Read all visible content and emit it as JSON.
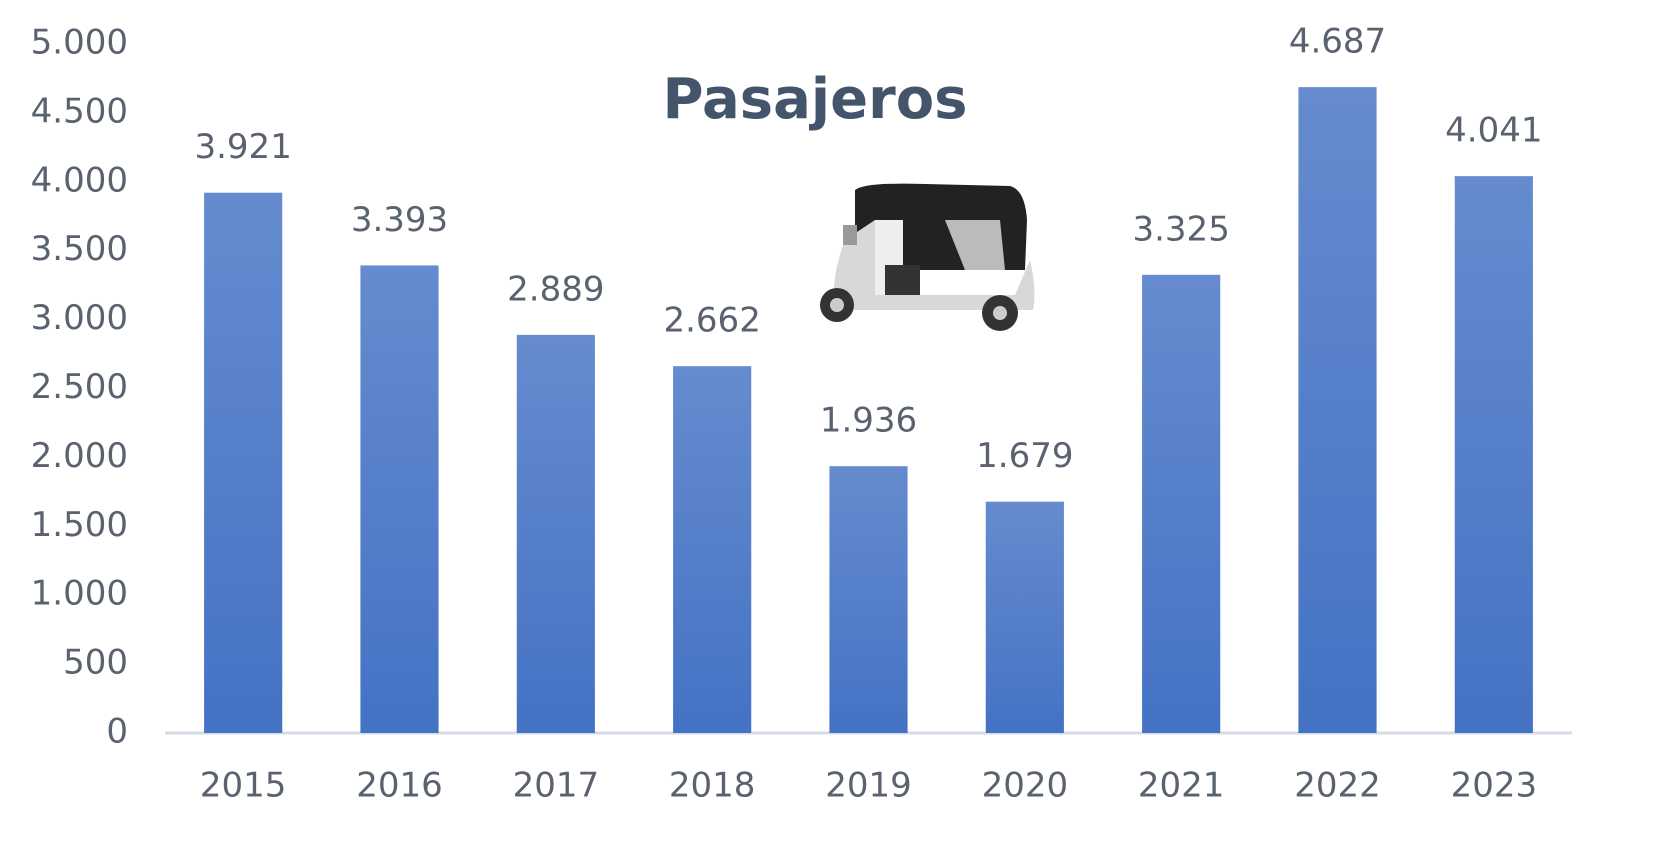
{
  "chart_data": {
    "type": "bar",
    "title": "Pasajeros",
    "categories": [
      "2015",
      "2016",
      "2017",
      "2018",
      "2019",
      "2020",
      "2021",
      "2022",
      "2023"
    ],
    "values": [
      3921,
      3393,
      2889,
      2662,
      1936,
      1679,
      3325,
      4687,
      4041
    ],
    "value_labels": [
      "3.921",
      "3.393",
      "2.889",
      "2.662",
      "1.936",
      "1.679",
      "3.325",
      "4.687",
      "4.041"
    ],
    "color": "#4472c4",
    "ylim": [
      0,
      5000
    ],
    "yticks": [
      0,
      500,
      {
        "value": 1000,
        "label": "1.000"
      },
      {
        "value": 1500,
        "label": "1.500"
      },
      {
        "value": 2000,
        "label": "2.000"
      },
      {
        "value": 2500,
        "label": "2.500"
      },
      {
        "value": 3000,
        "label": "3.000"
      },
      {
        "value": 3500,
        "label": "3.500"
      },
      {
        "value": 4000,
        "label": "4.000"
      },
      {
        "value": 4500,
        "label": "4.500"
      },
      {
        "value": 5000,
        "label": "5.000"
      }
    ],
    "grid": false
  }
}
